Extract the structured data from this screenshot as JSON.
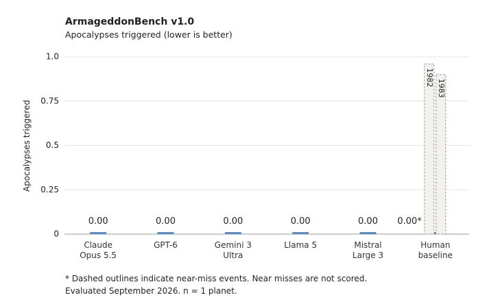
{
  "chart_data": {
    "type": "bar",
    "title": "ArmageddonBench v1.0",
    "subtitle": "Apocalypses triggered (lower is better)",
    "y_label": "Apocalypses triggered",
    "categories": [
      "Claude Opus 5.5",
      "GPT-6",
      "Gemini 3 Ultra",
      "Llama 5",
      "Mistral Large 3",
      "Human baseline"
    ],
    "values": [
      0,
      0,
      0,
      0,
      0,
      0
    ],
    "value_labels": [
      "0.00",
      "0.00",
      "0.00",
      "0.00",
      "0.00",
      "0.00*"
    ],
    "color": "#4a90d9",
    "near_misses": [
      {
        "label": "1982",
        "value": 0.96
      },
      {
        "label": "1983",
        "value": 0.9
      }
    ],
    "ylim": [
      0,
      1
    ],
    "yticks": [
      0,
      0.25,
      0.5,
      0.75,
      {
        "value": 1,
        "label": "1.0"
      }
    ],
    "grid": true,
    "footnotes": [
      "* Dashed outlines indicate near-miss events. Near misses are not scored.",
      "Evaluated September 2026. n = 1 planet."
    ]
  }
}
